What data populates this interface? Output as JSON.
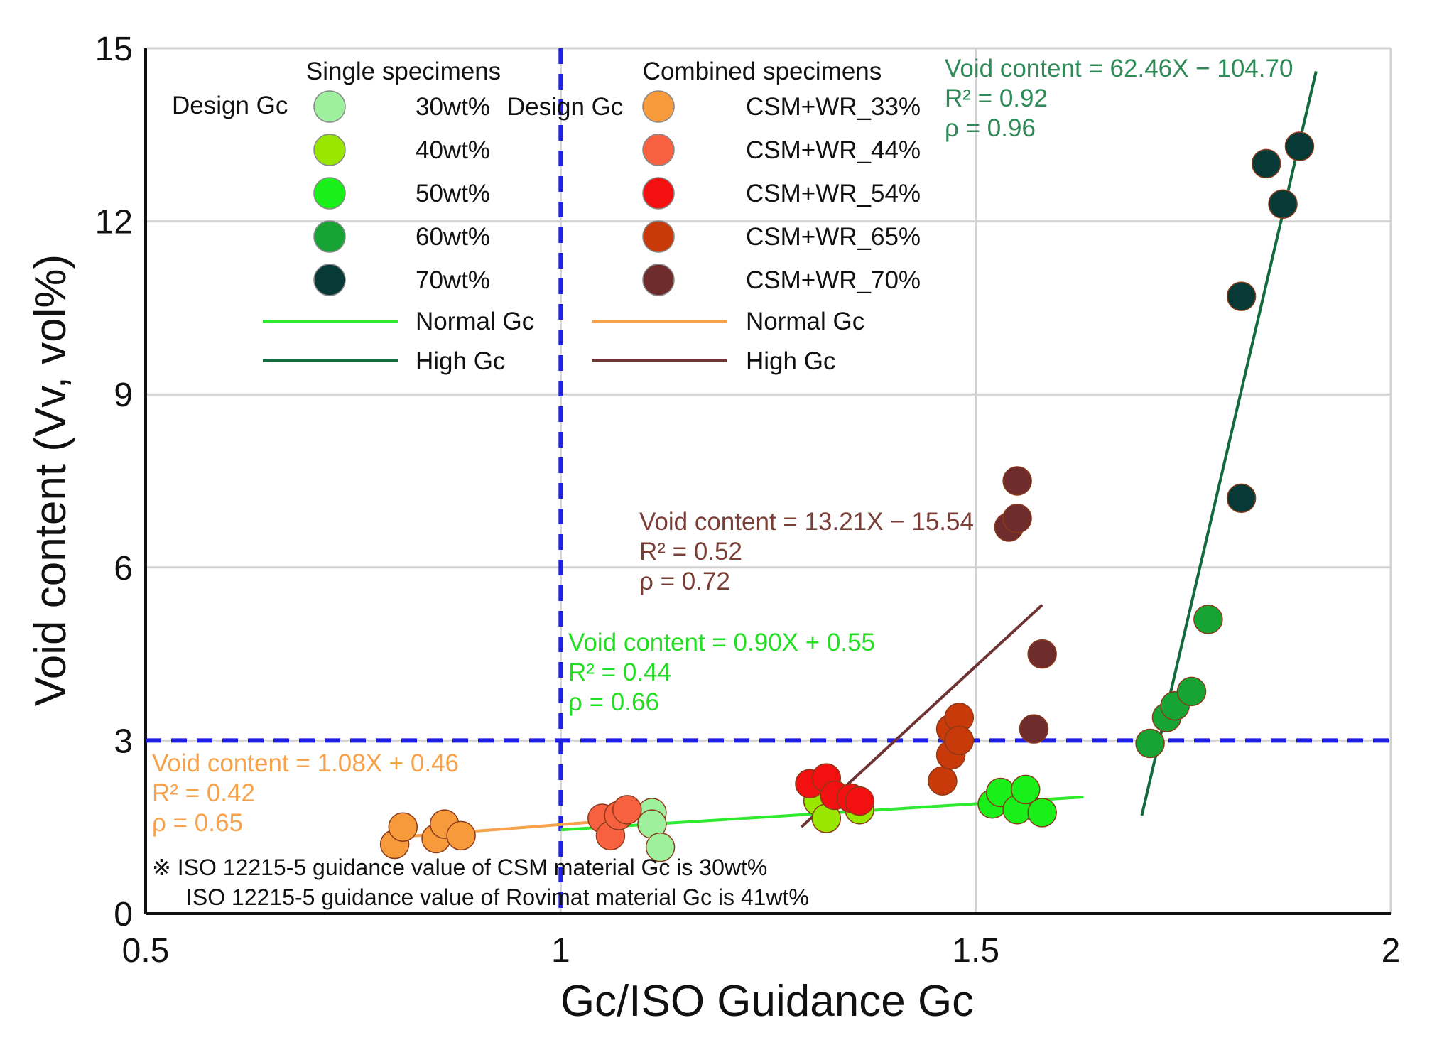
{
  "chart_data": {
    "type": "scatter",
    "xlabel": "Gc/ISO Guidance Gc",
    "ylabel": "Void content (Vv, vol%)",
    "xlim": [
      0.5,
      2
    ],
    "ylim": [
      0,
      15
    ],
    "xticks": [
      0.5,
      1,
      1.5,
      2
    ],
    "yticks": [
      0,
      3,
      6,
      9,
      12,
      15
    ],
    "xtick_labels": [
      "0.5",
      "1",
      "1.5",
      "2"
    ],
    "ytick_labels": [
      "0",
      "3",
      "6",
      "9",
      "12",
      "15"
    ],
    "grid": true,
    "reference_lines": [
      {
        "orientation": "vertical",
        "value": 1,
        "color": "#1f1fe6",
        "style": "dashed"
      },
      {
        "orientation": "horizontal",
        "value": 3,
        "color": "#1f1fe6",
        "style": "dashed"
      }
    ],
    "legend": {
      "placement": "top-left",
      "single_title": "Single specimens",
      "combined_title": "Combined specimens",
      "design_label": "Design Gc",
      "single_items": [
        {
          "label": "30wt%",
          "color": "#9ef09e"
        },
        {
          "label": "40wt%",
          "color": "#99e600"
        },
        {
          "label": "50wt%",
          "color": "#19ef19"
        },
        {
          "label": "60wt%",
          "color": "#18a335"
        },
        {
          "label": "70wt%",
          "color": "#073a36"
        }
      ],
      "single_lines": [
        {
          "label": "Normal Gc",
          "color": "#2eea2e"
        },
        {
          "label": "High Gc",
          "color": "#126b3c"
        }
      ],
      "combined_items": [
        {
          "label": "CSM+WR_33%",
          "color": "#f79a3c"
        },
        {
          "label": "CSM+WR_44%",
          "color": "#f76140"
        },
        {
          "label": "CSM+WR_54%",
          "color": "#f21010"
        },
        {
          "label": "CSM+WR_65%",
          "color": "#c83a0a"
        },
        {
          "label": "CSM+WR_70%",
          "color": "#6e2c2c"
        }
      ],
      "combined_lines": [
        {
          "label": "Normal Gc",
          "color": "#f7a24a"
        },
        {
          "label": "High Gc",
          "color": "#6e3434"
        }
      ]
    },
    "series": [
      {
        "name": "30wt%",
        "color": "#9ef09e",
        "points": [
          [
            1.11,
            1.75
          ],
          [
            1.11,
            1.55
          ],
          [
            1.12,
            1.15
          ]
        ]
      },
      {
        "name": "40wt%",
        "color": "#99e600",
        "points": [
          [
            1.31,
            1.95
          ],
          [
            1.32,
            1.65
          ],
          [
            1.36,
            1.8
          ]
        ]
      },
      {
        "name": "50wt%",
        "color": "#19ef19",
        "points": [
          [
            1.52,
            1.9
          ],
          [
            1.53,
            2.1
          ],
          [
            1.55,
            1.8
          ],
          [
            1.56,
            2.15
          ],
          [
            1.58,
            1.75
          ]
        ]
      },
      {
        "name": "60wt%",
        "color": "#18a335",
        "points": [
          [
            1.71,
            2.95
          ],
          [
            1.73,
            3.4
          ],
          [
            1.74,
            3.6
          ],
          [
            1.76,
            3.85
          ],
          [
            1.78,
            5.1
          ]
        ]
      },
      {
        "name": "70wt%",
        "color": "#073a36",
        "points": [
          [
            1.82,
            7.2
          ],
          [
            1.82,
            10.7
          ],
          [
            1.85,
            13.0
          ],
          [
            1.87,
            12.3
          ],
          [
            1.89,
            13.3
          ]
        ]
      },
      {
        "name": "CSM+WR_33%",
        "color": "#f79a3c",
        "points": [
          [
            0.8,
            1.2
          ],
          [
            0.81,
            1.5
          ],
          [
            0.85,
            1.3
          ],
          [
            0.86,
            1.55
          ],
          [
            0.88,
            1.35
          ]
        ]
      },
      {
        "name": "CSM+WR_44%",
        "color": "#f76140",
        "points": [
          [
            1.05,
            1.65
          ],
          [
            1.06,
            1.35
          ],
          [
            1.07,
            1.7
          ],
          [
            1.08,
            1.8
          ]
        ]
      },
      {
        "name": "CSM+WR_54%",
        "color": "#f21010",
        "points": [
          [
            1.3,
            2.25
          ],
          [
            1.32,
            2.35
          ],
          [
            1.33,
            2.05
          ],
          [
            1.35,
            2.0
          ],
          [
            1.36,
            1.95
          ]
        ]
      },
      {
        "name": "CSM+WR_65%",
        "color": "#c83a0a",
        "points": [
          [
            1.46,
            2.3
          ],
          [
            1.47,
            3.2
          ],
          [
            1.47,
            2.75
          ],
          [
            1.48,
            3.4
          ],
          [
            1.48,
            3.0
          ]
        ]
      },
      {
        "name": "CSM+WR_70%",
        "color": "#6e2c2c",
        "points": [
          [
            1.54,
            6.7
          ],
          [
            1.55,
            6.85
          ],
          [
            1.55,
            7.5
          ],
          [
            1.57,
            3.2
          ],
          [
            1.58,
            4.5
          ]
        ]
      }
    ],
    "trend_lines": [
      {
        "name": "Single Normal Gc",
        "color": "#2eea2e",
        "x": [
          1.0,
          1.63
        ],
        "y": [
          1.45,
          2.02
        ]
      },
      {
        "name": "Single High Gc",
        "color": "#126b3c",
        "x": [
          1.7,
          1.91
        ],
        "y": [
          1.7,
          14.6
        ]
      },
      {
        "name": "Combined Normal Gc",
        "color": "#f7a24a",
        "x": [
          0.79,
          1.08
        ],
        "y": [
          1.31,
          1.63
        ]
      },
      {
        "name": "Combined High Gc",
        "color": "#6e3434",
        "x": [
          1.29,
          1.58
        ],
        "y": [
          1.5,
          5.35
        ]
      }
    ],
    "annotations": [
      {
        "color": "#2e8b57",
        "lines": [
          "Void content = 62.46X − 104.70",
          "R² = 0.92",
          "ρ = 0.96"
        ]
      },
      {
        "color": "#7a3e36",
        "lines": [
          "Void content = 13.21X − 15.54",
          "R² = 0.52",
          "ρ = 0.72"
        ]
      },
      {
        "color": "#22dd22",
        "lines": [
          "Void content = 0.90X + 0.55",
          "R² = 0.44",
          "ρ = 0.66"
        ]
      },
      {
        "color": "#f7a24a",
        "lines": [
          "Void content = 1.08X + 0.46",
          "R² = 0.42",
          "ρ = 0.65"
        ]
      }
    ],
    "notes": [
      "※  ISO 12215-5 guidance value of CSM material Gc is 30wt%",
      "ISO 12215-5 guidance value of Rovimat material Gc is 41wt%"
    ]
  }
}
